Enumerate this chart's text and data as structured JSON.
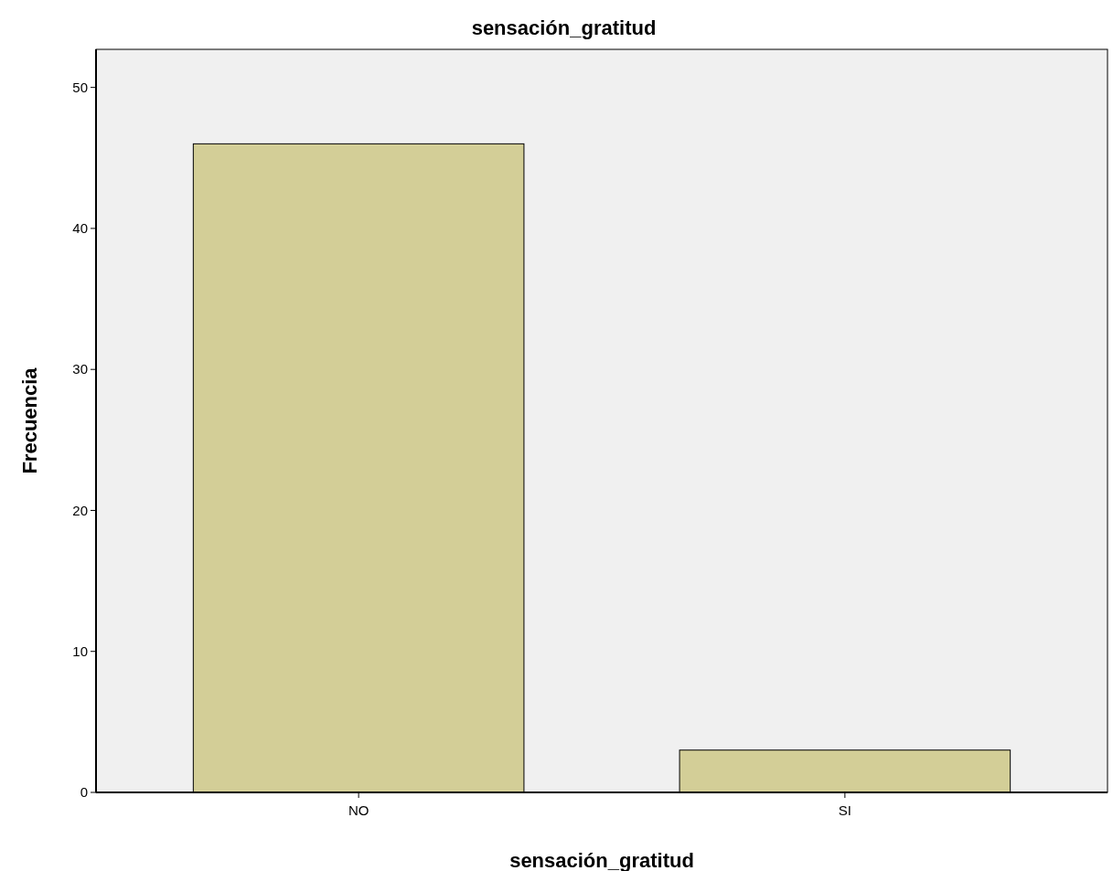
{
  "chart_data": {
    "type": "bar",
    "title": "sensación_gratitud",
    "xlabel": "sensación_gratitud",
    "ylabel": "Frecuencia",
    "categories": [
      "NO",
      "SI"
    ],
    "values": [
      46,
      3
    ],
    "color": "#d3ce97",
    "ylim": [
      0,
      52.7
    ],
    "yticks": [
      0,
      10,
      20,
      30,
      40,
      50
    ],
    "grid": false
  }
}
